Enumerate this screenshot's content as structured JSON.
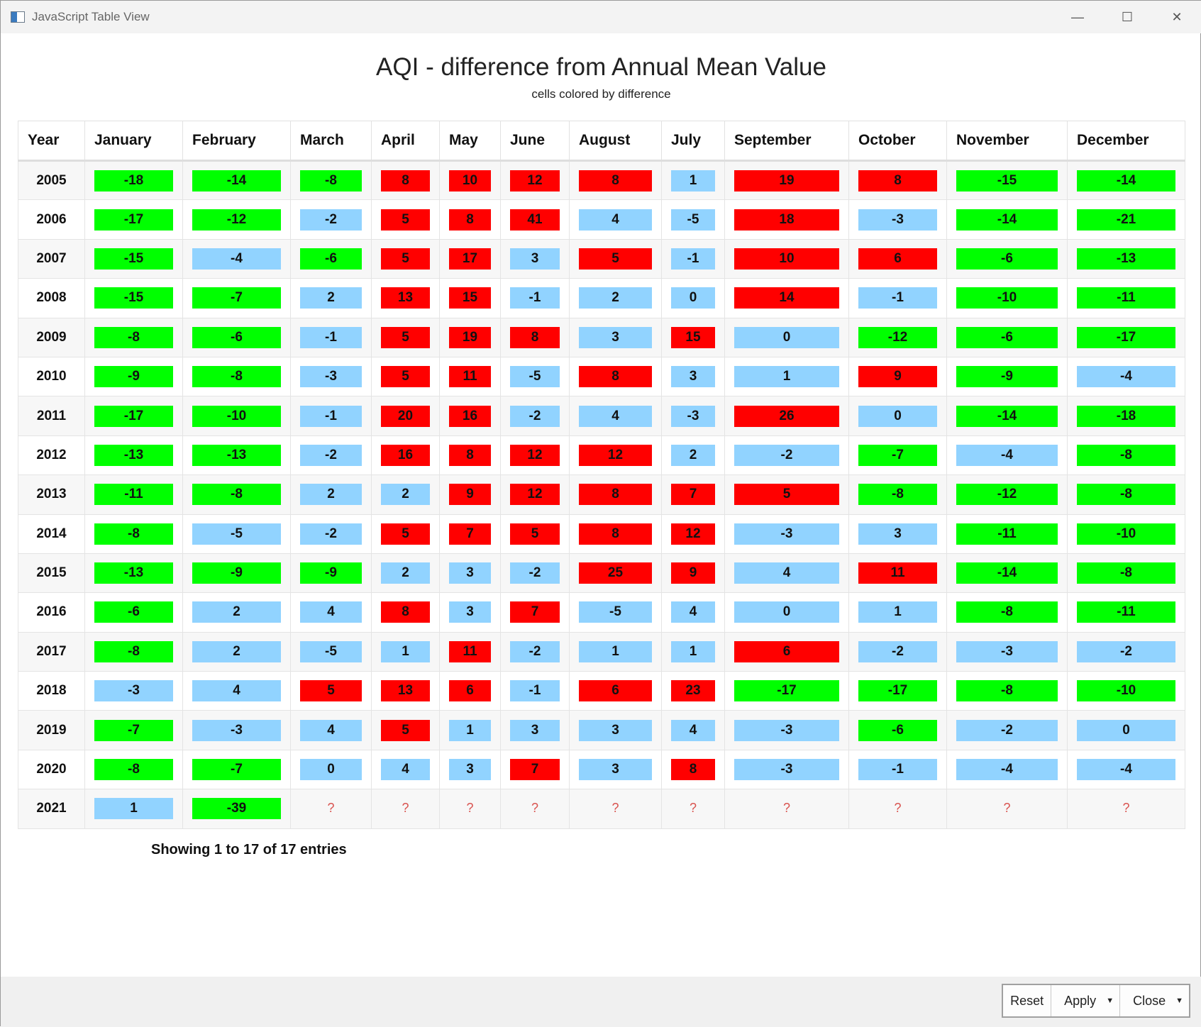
{
  "window": {
    "title": "JavaScript Table View"
  },
  "header": {
    "title": "AQI - difference from Annual Mean Value",
    "subtitle": "cells colored by difference"
  },
  "colors": {
    "high": "#ff0000",
    "mid": "#91d3ff",
    "low": "#00ff00",
    "missing": "#d9534f"
  },
  "table": {
    "columns": [
      "Year",
      "January",
      "February",
      "March",
      "April",
      "May",
      "June",
      "August",
      "July",
      "September",
      "October",
      "November",
      "December"
    ],
    "rows": [
      [
        "2005",
        -18,
        -14,
        -8,
        8,
        10,
        12,
        8,
        1,
        19,
        8,
        -15,
        -14
      ],
      [
        "2006",
        -17,
        -12,
        -2,
        5,
        8,
        41,
        4,
        -5,
        18,
        -3,
        -14,
        -21
      ],
      [
        "2007",
        -15,
        -4,
        -6,
        5,
        17,
        3,
        5,
        -1,
        10,
        6,
        -6,
        -13
      ],
      [
        "2008",
        -15,
        -7,
        2,
        13,
        15,
        -1,
        2,
        0,
        14,
        -1,
        -10,
        -11
      ],
      [
        "2009",
        -8,
        -6,
        -1,
        5,
        19,
        8,
        3,
        15,
        0,
        -12,
        -6,
        -17
      ],
      [
        "2010",
        -9,
        -8,
        -3,
        5,
        11,
        -5,
        8,
        3,
        1,
        9,
        -9,
        -4
      ],
      [
        "2011",
        -17,
        -10,
        -1,
        20,
        16,
        -2,
        4,
        -3,
        26,
        0,
        -14,
        -18
      ],
      [
        "2012",
        -13,
        -13,
        -2,
        16,
        8,
        12,
        12,
        2,
        -2,
        -7,
        -4,
        -8
      ],
      [
        "2013",
        -11,
        -8,
        2,
        2,
        9,
        12,
        8,
        7,
        5,
        -8,
        -12,
        -8
      ],
      [
        "2014",
        -8,
        -5,
        -2,
        5,
        7,
        5,
        8,
        12,
        -3,
        3,
        -11,
        -10
      ],
      [
        "2015",
        -13,
        -9,
        -9,
        2,
        3,
        -2,
        25,
        9,
        4,
        11,
        -14,
        -8
      ],
      [
        "2016",
        -6,
        2,
        4,
        8,
        3,
        7,
        -5,
        4,
        0,
        1,
        -8,
        -11
      ],
      [
        "2017",
        -8,
        2,
        -5,
        1,
        11,
        -2,
        1,
        1,
        6,
        -2,
        -3,
        -2
      ],
      [
        "2018",
        -3,
        4,
        5,
        13,
        6,
        -1,
        6,
        23,
        -17,
        -17,
        -8,
        -10
      ],
      [
        "2019",
        -7,
        -3,
        4,
        5,
        1,
        3,
        3,
        4,
        -3,
        -6,
        -2,
        0
      ],
      [
        "2020",
        -8,
        -7,
        0,
        4,
        3,
        7,
        3,
        8,
        -3,
        -1,
        -4,
        -4
      ],
      [
        "2021",
        1,
        -39,
        "?",
        "?",
        "?",
        "?",
        "?",
        "?",
        "?",
        "?",
        "?",
        "?"
      ]
    ]
  },
  "info": "Showing 1 to 17 of 17 entries",
  "buttons": {
    "reset": "Reset",
    "apply": "Apply",
    "close": "Close"
  }
}
